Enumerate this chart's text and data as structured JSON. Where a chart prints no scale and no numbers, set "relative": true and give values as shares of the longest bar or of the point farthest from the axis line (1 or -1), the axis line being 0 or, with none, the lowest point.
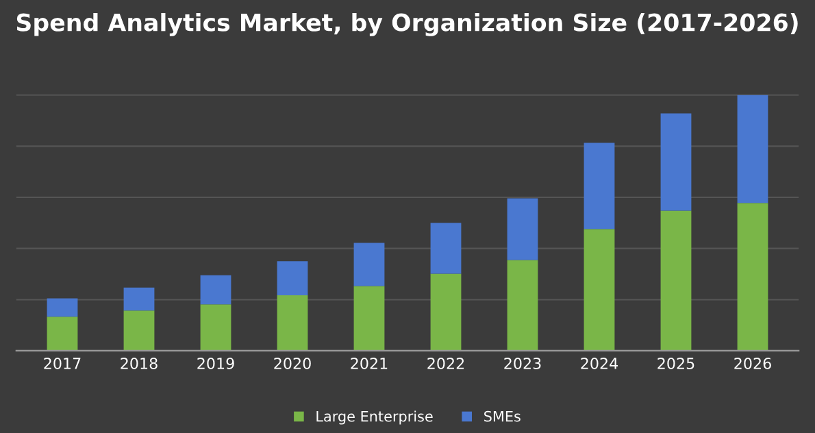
{
  "chart_data": {
    "type": "bar",
    "title": "Spend Analytics Market, by Organization Size (2017-2026)",
    "categories": [
      "2017",
      "2018",
      "2019",
      "2020",
      "2021",
      "2022",
      "2023",
      "2024",
      "2025",
      "2026"
    ],
    "stacked": true,
    "relative": true,
    "grid": "y",
    "legend": "bottom",
    "series": [
      {
        "name": "Large Enterprise",
        "color": "#7ab648",
        "values": [
          0.133,
          0.157,
          0.181,
          0.217,
          0.253,
          0.301,
          0.355,
          0.476,
          0.548,
          0.578
        ]
      },
      {
        "name": "SMEs",
        "color": "#4a78d0",
        "values": [
          0.072,
          0.09,
          0.114,
          0.133,
          0.169,
          0.199,
          0.241,
          0.337,
          0.38,
          0.422
        ]
      }
    ]
  }
}
